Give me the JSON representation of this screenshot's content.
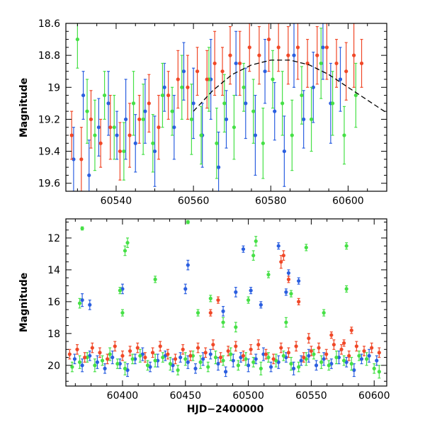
{
  "chart_data": [
    {
      "type": "scatter",
      "title": "",
      "xlabel": "",
      "ylabel": "Magnitude",
      "xlim": [
        60527,
        60610
      ],
      "ylim": [
        19.65,
        18.6
      ],
      "y_inverted": true,
      "x_ticks": [
        60540,
        60560,
        60580,
        60600
      ],
      "x_tick_labels": [
        "60540",
        "60560",
        "60580",
        "60600"
      ],
      "y_ticks": [
        18.6,
        18.8,
        19,
        19.2,
        19.4,
        19.6
      ],
      "y_tick_labels": [
        "18.6",
        "18.8",
        "19",
        "19.2",
        "19.4",
        "19.6"
      ],
      "grid": false,
      "error_bars": true,
      "series": [
        {
          "color": "#2b5fe0",
          "x": [
            60529.0,
            60531.5,
            60533.0,
            60535.5,
            60538.0,
            60540.2,
            60542.5,
            60545.0,
            60547.5,
            60550.0,
            60552.5,
            60555.0,
            60557.5,
            60560.0,
            60562.3,
            60564.5,
            60566.5,
            60568.5,
            60571.0,
            60573.5,
            60576.0,
            60578.5,
            60581.0,
            60583.5,
            60586.0,
            60588.5,
            60591.0,
            60593.5,
            60595.5,
            60598.0
          ],
          "y": [
            19.45,
            19.05,
            19.55,
            19.25,
            19.1,
            19.3,
            19.2,
            19.35,
            19.15,
            19.4,
            19.0,
            19.25,
            18.9,
            19.1,
            19.3,
            18.95,
            19.5,
            19.2,
            18.85,
            19.1,
            19.3,
            18.9,
            19.15,
            19.4,
            18.8,
            19.2,
            19.0,
            18.75,
            19.1,
            18.95
          ],
          "err": [
            0.2,
            0.15,
            0.22,
            0.18,
            0.2,
            0.15,
            0.25,
            0.18,
            0.2,
            0.22,
            0.15,
            0.2,
            0.18,
            0.22,
            0.2,
            0.25,
            0.22,
            0.18,
            0.2,
            0.22,
            0.25,
            0.2,
            0.18,
            0.22,
            0.2,
            0.18,
            0.22,
            0.2,
            0.25,
            0.2
          ]
        },
        {
          "color": "#46e046",
          "x": [
            60530.0,
            60532.5,
            60534.5,
            60537.0,
            60539.5,
            60542.0,
            60544.5,
            60547.0,
            60549.5,
            60552.0,
            60554.5,
            60557.0,
            60559.5,
            60562.0,
            60564.0,
            60566.0,
            60568.0,
            60570.5,
            60573.0,
            60575.5,
            60578.0,
            60580.5,
            60583.0,
            60585.5,
            60588.0,
            60590.5,
            60593.0,
            60596.0,
            60599.0,
            60602.0
          ],
          "y": [
            18.7,
            19.15,
            19.3,
            19.05,
            19.25,
            19.4,
            19.1,
            19.2,
            19.35,
            19.05,
            19.15,
            19.0,
            19.2,
            19.3,
            18.95,
            19.35,
            19.1,
            19.25,
            19.0,
            19.15,
            19.35,
            18.95,
            19.1,
            19.3,
            19.05,
            19.2,
            18.85,
            19.1,
            19.3,
            19.05
          ],
          "err": [
            0.18,
            0.2,
            0.22,
            0.15,
            0.2,
            0.18,
            0.2,
            0.22,
            0.18,
            0.2,
            0.15,
            0.2,
            0.22,
            0.18,
            0.2,
            0.22,
            0.18,
            0.2,
            0.15,
            0.2,
            0.22,
            0.18,
            0.2,
            0.22,
            0.18,
            0.2,
            0.22,
            0.2,
            0.18,
            0.2
          ]
        },
        {
          "color": "#f04828",
          "x": [
            60528.5,
            60531.0,
            60533.5,
            60536.0,
            60538.5,
            60541.0,
            60543.5,
            60546.0,
            60548.5,
            60551.0,
            60553.5,
            60556.0,
            60558.5,
            60561.0,
            60563.5,
            60565.5,
            60567.5,
            60569.5,
            60572.0,
            60574.5,
            60577.0,
            60579.5,
            60582.0,
            60584.5,
            60587.0,
            60589.5,
            60592.0,
            60594.5,
            60597.0,
            60599.5,
            60601.5,
            60603.5
          ],
          "y": [
            19.3,
            19.45,
            19.2,
            19.35,
            19.25,
            19.4,
            19.3,
            19.2,
            19.1,
            19.25,
            19.05,
            18.95,
            19.0,
            18.9,
            18.95,
            18.85,
            18.9,
            18.8,
            18.85,
            18.75,
            18.8,
            18.7,
            18.75,
            18.8,
            18.75,
            18.85,
            18.8,
            18.75,
            18.85,
            18.9,
            18.8,
            18.85
          ],
          "err": [
            0.15,
            0.2,
            0.18,
            0.15,
            0.2,
            0.18,
            0.2,
            0.15,
            0.18,
            0.2,
            0.15,
            0.18,
            0.2,
            0.15,
            0.18,
            0.2,
            0.15,
            0.18,
            0.2,
            0.15,
            0.18,
            0.2,
            0.15,
            0.18,
            0.2,
            0.15,
            0.18,
            0.2,
            0.15,
            0.18,
            0.2,
            0.15
          ]
        }
      ],
      "model_curve": {
        "color": "#000000",
        "style": "dashed",
        "x": [
          60560,
          60565,
          60570,
          60575,
          60580,
          60585,
          60590,
          60595,
          60600,
          60605,
          60610
        ],
        "y": [
          19.15,
          19.02,
          18.92,
          18.86,
          18.83,
          18.83,
          18.86,
          18.92,
          19.0,
          19.08,
          19.16
        ]
      }
    },
    {
      "type": "scatter",
      "title": "",
      "xlabel": "HJD−2400000",
      "ylabel": "Magnitude",
      "xlim": [
        60355,
        60610
      ],
      "ylim": [
        21.3,
        10.8
      ],
      "y_inverted": true,
      "x_ticks": [
        60400,
        60450,
        60500,
        60550,
        60600
      ],
      "x_tick_labels": [
        "60400",
        "60450",
        "60500",
        "60550",
        "60600"
      ],
      "y_ticks": [
        12,
        14,
        16,
        18,
        20
      ],
      "y_tick_labels": [
        "12",
        "14",
        "16",
        "18",
        "20"
      ],
      "grid": false,
      "error_bars": true,
      "series": [
        {
          "color": "#2b5fe0",
          "x": [
            60362,
            60368,
            60374,
            60380,
            60386,
            60392,
            60398,
            60404,
            60410,
            60416,
            60422,
            60428,
            60434,
            60440,
            60446,
            60452,
            60458,
            60464,
            60470,
            60476,
            60482,
            60488,
            60494,
            60500,
            60506,
            60512,
            60518,
            60524,
            60530,
            60536,
            60542,
            60548,
            60554,
            60560,
            60566,
            60572,
            60578,
            60584,
            60590,
            60596,
            60602,
            60368,
            60374,
            60400,
            60450,
            60452,
            60480,
            60490,
            60496,
            60502,
            60510,
            60524,
            60530,
            60532,
            60540
          ],
          "y": [
            19.6,
            20.0,
            19.4,
            19.8,
            20.2,
            19.5,
            19.9,
            20.3,
            19.6,
            19.3,
            20.1,
            19.7,
            19.4,
            20.0,
            19.5,
            19.8,
            20.2,
            19.6,
            19.3,
            19.9,
            20.4,
            19.7,
            19.5,
            20.0,
            19.6,
            19.3,
            20.1,
            19.8,
            19.5,
            20.2,
            19.7,
            19.4,
            20.0,
            19.6,
            19.9,
            19.5,
            19.8,
            20.3,
            19.6,
            19.4,
            19.7,
            15.9,
            16.2,
            15.2,
            15.2,
            13.7,
            16.6,
            15.4,
            12.7,
            15.3,
            16.2,
            12.5,
            15.4,
            14.2,
            14.7
          ],
          "err": [
            0.3,
            0.4,
            0.3,
            0.4,
            0.3,
            0.4,
            0.3,
            0.4,
            0.3,
            0.4,
            0.3,
            0.4,
            0.3,
            0.4,
            0.3,
            0.4,
            0.3,
            0.4,
            0.3,
            0.4,
            0.3,
            0.4,
            0.3,
            0.4,
            0.3,
            0.4,
            0.3,
            0.4,
            0.3,
            0.4,
            0.3,
            0.4,
            0.3,
            0.4,
            0.3,
            0.4,
            0.3,
            0.4,
            0.3,
            0.4,
            0.3,
            0.4,
            0.3,
            0.3,
            0.3,
            0.3,
            0.3,
            0.3,
            0.2,
            0.2,
            0.2,
            0.2,
            0.2,
            0.2,
            0.2
          ]
        },
        {
          "color": "#46e046",
          "x": [
            60360,
            60366,
            60372,
            60378,
            60384,
            60390,
            60396,
            60402,
            60408,
            60414,
            60420,
            60426,
            60432,
            60438,
            60444,
            60450,
            60456,
            60462,
            60468,
            60474,
            60480,
            60486,
            60492,
            60498,
            60504,
            60510,
            60516,
            60522,
            60528,
            60534,
            60540,
            60546,
            60552,
            60558,
            60564,
            60570,
            60576,
            60582,
            60588,
            60594,
            60600,
            60604,
            60368,
            60366,
            60400,
            60402,
            60404,
            60398,
            60426,
            60452,
            60460,
            60470,
            60480,
            60490,
            60500,
            60504,
            60506,
            60516,
            60530,
            60534,
            60546,
            60560,
            60578,
            60578
          ],
          "y": [
            20.1,
            19.8,
            19.5,
            20.0,
            19.7,
            19.3,
            19.9,
            20.2,
            19.6,
            19.4,
            20.0,
            19.7,
            19.5,
            19.9,
            20.3,
            19.6,
            19.4,
            19.8,
            20.1,
            19.5,
            19.7,
            19.3,
            20.0,
            19.6,
            19.8,
            20.2,
            19.5,
            19.7,
            19.4,
            19.9,
            20.1,
            19.6,
            19.3,
            19.8,
            20.0,
            19.5,
            19.7,
            19.9,
            19.4,
            19.6,
            20.2,
            20.4,
            11.4,
            16.1,
            16.7,
            12.8,
            12.3,
            15.3,
            14.6,
            11.0,
            16.7,
            15.8,
            17.3,
            17.6,
            15.9,
            13.1,
            12.2,
            14.3,
            17.3,
            15.5,
            12.6,
            16.7,
            12.5,
            15.2
          ],
          "err": [
            0.3,
            0.4,
            0.3,
            0.4,
            0.3,
            0.4,
            0.3,
            0.4,
            0.3,
            0.4,
            0.3,
            0.4,
            0.3,
            0.4,
            0.3,
            0.4,
            0.3,
            0.4,
            0.3,
            0.4,
            0.3,
            0.4,
            0.3,
            0.4,
            0.3,
            0.4,
            0.3,
            0.4,
            0.3,
            0.4,
            0.3,
            0.4,
            0.3,
            0.4,
            0.3,
            0.4,
            0.3,
            0.4,
            0.3,
            0.4,
            0.3,
            0.4,
            0.1,
            0.3,
            0.2,
            0.3,
            0.3,
            0.2,
            0.2,
            0.1,
            0.2,
            0.2,
            0.3,
            0.3,
            0.2,
            0.3,
            0.3,
            0.2,
            0.3,
            0.2,
            0.2,
            0.2,
            0.2,
            0.2
          ]
        },
        {
          "color": "#f04828",
          "x": [
            60358,
            60364,
            60370,
            60376,
            60382,
            60388,
            60394,
            60400,
            60406,
            60412,
            60418,
            60424,
            60430,
            60436,
            60442,
            60448,
            60454,
            60460,
            60466,
            60472,
            60478,
            60484,
            60490,
            60496,
            60502,
            60508,
            60514,
            60520,
            60526,
            60532,
            60538,
            60544,
            60550,
            60556,
            60562,
            60568,
            60574,
            60580,
            60586,
            60592,
            60598,
            60604,
            60526,
            60528,
            60532,
            60540,
            60548,
            60566,
            60576,
            60582,
            60470,
            60476
          ],
          "y": [
            19.3,
            19.0,
            19.5,
            18.9,
            19.2,
            19.6,
            18.8,
            19.4,
            19.1,
            18.9,
            19.5,
            19.2,
            18.8,
            19.3,
            19.6,
            19.0,
            19.4,
            18.9,
            19.2,
            18.7,
            19.5,
            19.1,
            18.8,
            19.4,
            19.0,
            18.7,
            19.3,
            19.6,
            18.9,
            19.2,
            18.8,
            19.5,
            19.1,
            18.9,
            19.3,
            18.7,
            19.0,
            19.4,
            18.8,
            19.1,
            18.9,
            19.2,
            13.5,
            13.1,
            14.6,
            16.0,
            18.3,
            18.1,
            18.6,
            17.8,
            16.7,
            15.9
          ],
          "err": [
            0.3,
            0.3,
            0.3,
            0.3,
            0.3,
            0.3,
            0.3,
            0.3,
            0.3,
            0.3,
            0.3,
            0.3,
            0.3,
            0.3,
            0.3,
            0.3,
            0.3,
            0.3,
            0.3,
            0.3,
            0.3,
            0.3,
            0.3,
            0.3,
            0.3,
            0.3,
            0.3,
            0.3,
            0.3,
            0.3,
            0.3,
            0.3,
            0.3,
            0.3,
            0.3,
            0.3,
            0.3,
            0.3,
            0.3,
            0.3,
            0.3,
            0.3,
            0.4,
            0.3,
            0.2,
            0.2,
            0.3,
            0.2,
            0.2,
            0.2,
            0.2,
            0.2
          ]
        }
      ]
    }
  ]
}
